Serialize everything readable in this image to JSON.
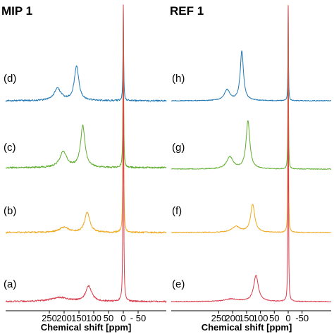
{
  "chart_data": [
    {
      "type": "line",
      "title": "MIP 1",
      "xlabel": "Chemical shift [ppm]",
      "ylabel": "",
      "xlim": [
        270,
        -90
      ],
      "x_reversed": true,
      "xticks": [
        250,
        200,
        150,
        100,
        50,
        0,
        -50
      ],
      "xtick_labels": [
        "250",
        "200",
        "150",
        "100",
        "50",
        "0",
        "- 50"
      ],
      "grid": false,
      "series": [
        {
          "name": "(d)",
          "color": "#1f78b4",
          "peaks": [
            {
              "ppm": 222,
              "height": 0.19,
              "width": 14
            },
            {
              "ppm": 158,
              "height": 0.55,
              "width": 9
            },
            {
              "ppm": 0,
              "height": 1.0,
              "width": 1.2
            }
          ]
        },
        {
          "name": "(c)",
          "color": "#5fae2e",
          "peaks": [
            {
              "ppm": 203,
              "height": 0.24,
              "width": 14
            },
            {
              "ppm": 137,
              "height": 0.62,
              "width": 9
            },
            {
              "ppm": 0,
              "height": 1.0,
              "width": 1.2
            }
          ]
        },
        {
          "name": "(b)",
          "color": "#f0a81e",
          "peaks": [
            {
              "ppm": 200,
              "height": 0.08,
              "width": 20
            },
            {
              "ppm": 122,
              "height": 0.32,
              "width": 10
            },
            {
              "ppm": 0,
              "height": 1.0,
              "width": 1.2
            }
          ]
        },
        {
          "name": "(a)",
          "color": "#d93b4a",
          "peaks": [
            {
              "ppm": 215,
              "height": 0.05,
              "width": 35
            },
            {
              "ppm": 117,
              "height": 0.19,
              "width": 12
            },
            {
              "ppm": 0,
              "height": 1.0,
              "width": 1.2
            }
          ]
        }
      ]
    },
    {
      "type": "line",
      "title": "REF 1",
      "xlabel": "Chemical shift [ppm]",
      "ylabel": "",
      "xlim": [
        270,
        -90
      ],
      "x_reversed": true,
      "xticks": [
        250,
        200,
        150,
        100,
        50,
        0,
        -50
      ],
      "xtick_labels": [
        "250",
        "200",
        "150",
        "100",
        "50",
        "0",
        "-50"
      ],
      "grid": false,
      "series": [
        {
          "name": "(h)",
          "color": "#1f78b4",
          "peaks": [
            {
              "ppm": 220,
              "height": 0.17,
              "width": 12
            },
            {
              "ppm": 167,
              "height": 0.78,
              "width": 7
            },
            {
              "ppm": 0,
              "height": 1.0,
              "width": 1.0
            }
          ]
        },
        {
          "name": "(g)",
          "color": "#5fae2e",
          "peaks": [
            {
              "ppm": 210,
              "height": 0.18,
              "width": 14
            },
            {
              "ppm": 145,
              "height": 0.72,
              "width": 8
            },
            {
              "ppm": 0,
              "height": 1.0,
              "width": 1.0
            }
          ]
        },
        {
          "name": "(f)",
          "color": "#f0a81e",
          "peaks": [
            {
              "ppm": 188,
              "height": 0.09,
              "width": 18
            },
            {
              "ppm": 128,
              "height": 0.44,
              "width": 9
            },
            {
              "ppm": 0,
              "height": 1.0,
              "width": 1.0
            }
          ]
        },
        {
          "name": "(e)",
          "color": "#d93b4a",
          "peaks": [
            {
              "ppm": 205,
              "height": 0.03,
              "width": 30
            },
            {
              "ppm": 116,
              "height": 0.32,
              "width": 10
            },
            {
              "ppm": 0,
              "height": 1.0,
              "width": 1.0
            }
          ]
        }
      ]
    }
  ]
}
